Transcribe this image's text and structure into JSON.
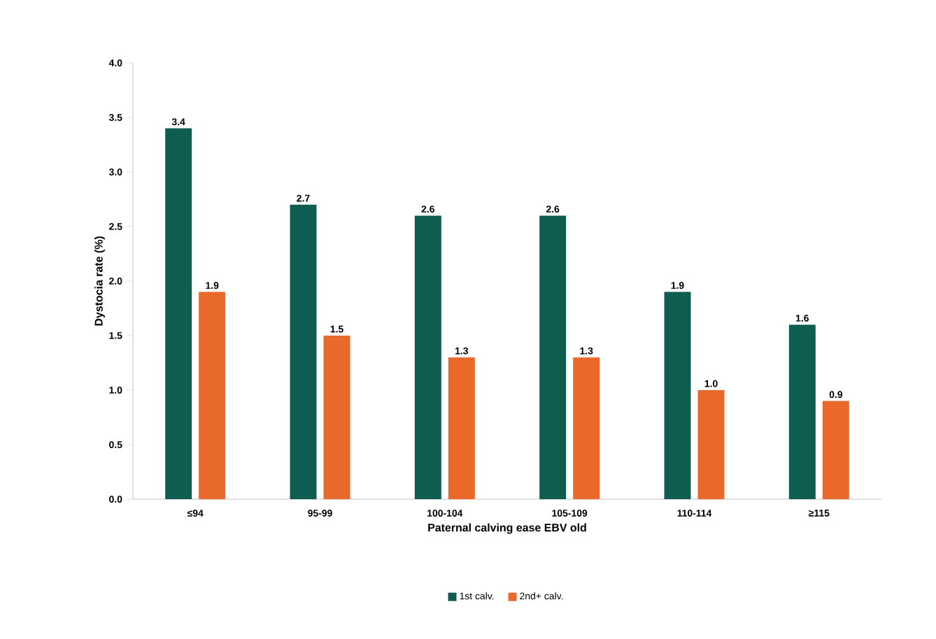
{
  "chart_data": {
    "type": "bar",
    "xlabel": "Paternal calving ease EBV old",
    "ylabel": "Dystocia rate (%)",
    "categories": [
      "≤94",
      "95-99",
      "100-104",
      "105-109",
      "110-114",
      "≥115"
    ],
    "series": [
      {
        "name": "1st calv.",
        "color": "#0f5c50",
        "values": [
          3.4,
          2.7,
          2.6,
          2.6,
          1.9,
          1.6
        ],
        "value_labels": [
          "3.4",
          "2.7",
          "2.6",
          "2.6",
          "1.9",
          "1.6"
        ]
      },
      {
        "name": "2nd+ calv.",
        "color": "#e8692a",
        "values": [
          1.9,
          1.5,
          1.3,
          1.3,
          1.0,
          0.9
        ],
        "value_labels": [
          "1.9",
          "1.5",
          "1.3",
          "1.3",
          "1.0",
          "0.9"
        ]
      }
    ],
    "ylim": [
      0,
      4
    ],
    "yticks": [
      {
        "value": 0,
        "label": "0.0"
      },
      {
        "value": 0.5,
        "label": "0.5"
      },
      {
        "value": 1,
        "label": "1.0"
      },
      {
        "value": 1.5,
        "label": "1.5"
      },
      {
        "value": 2,
        "label": "2.0"
      },
      {
        "value": 2.5,
        "label": "2.5"
      },
      {
        "value": 3,
        "label": "3.0"
      },
      {
        "value": 3.5,
        "label": "3.5"
      },
      {
        "value": 4,
        "label": "4.0"
      }
    ],
    "legend": "bottom"
  }
}
